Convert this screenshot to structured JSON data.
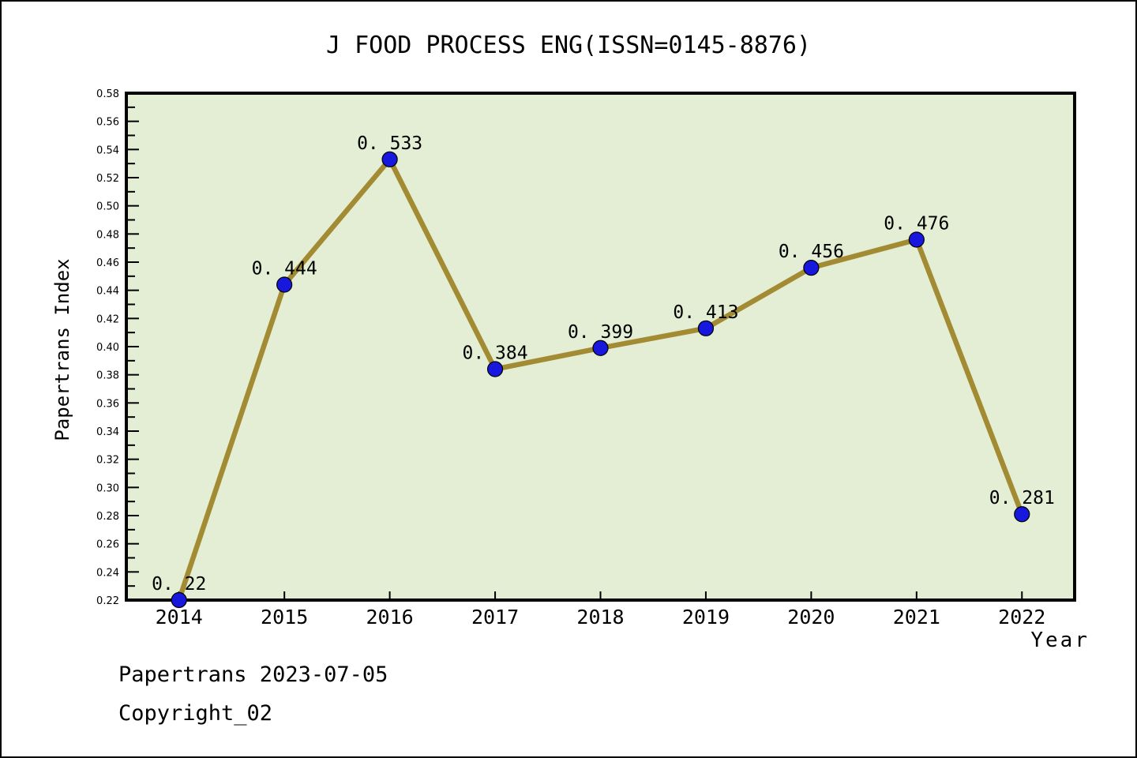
{
  "chart_data": {
    "type": "line",
    "title": "J FOOD PROCESS ENG(ISSN=0145-8876)",
    "xlabel": "Year",
    "ylabel": "Papertrans Index",
    "categories": [
      "2014",
      "2015",
      "2016",
      "2017",
      "2018",
      "2019",
      "2020",
      "2021",
      "2022"
    ],
    "series": [
      {
        "name": "Papertrans Index",
        "values": [
          0.22,
          0.444,
          0.533,
          0.384,
          0.399,
          0.413,
          0.456,
          0.476,
          0.281
        ]
      }
    ],
    "point_labels": [
      "0. 22",
      "0. 444",
      "0. 533",
      "0. 384",
      "0. 399",
      "0. 413",
      "0. 456",
      "0. 476",
      "0. 281"
    ],
    "ylim": [
      0.22,
      0.58
    ],
    "xlim": [
      2013.5,
      2022.5
    ],
    "ytick_step": 0.02,
    "ytick_minor_step": 0.01,
    "ytick_labels": [
      "0.22",
      "0.24",
      "0.26",
      "0.28",
      "0.30",
      "0.32",
      "0.34",
      "0.36",
      "0.38",
      "0.40",
      "0.42",
      "0.44",
      "0.46",
      "0.48",
      "0.50",
      "0.52",
      "0.54",
      "0.56",
      "0.58"
    ],
    "grid": false,
    "legend": null,
    "colors": {
      "plot_bg": "#e3eed4",
      "line": "#a28b32",
      "marker": "#1717dd",
      "marker_edge": "#000000",
      "axis": "#000000",
      "text": "#000000"
    }
  },
  "footer": {
    "line1": "Papertrans 2023-07-05",
    "line2": "Copyright_02"
  }
}
